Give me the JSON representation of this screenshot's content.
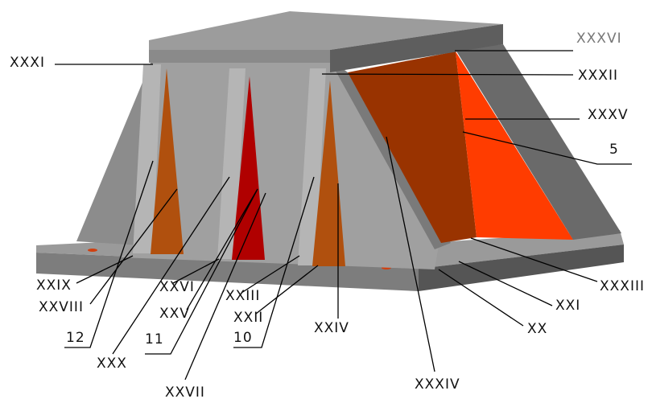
{
  "labels": [
    "XXXI",
    "XXXVI",
    "XXXII",
    "XXXV",
    "5",
    "XXXIII",
    "XXI",
    "XX",
    "XXXIV",
    "XXIV",
    "10",
    "XXII",
    "XXIII",
    "11",
    "XXV",
    "XXVII",
    "XXVI",
    "XXIX",
    "XXVIII",
    "12",
    "XXX"
  ]
}
